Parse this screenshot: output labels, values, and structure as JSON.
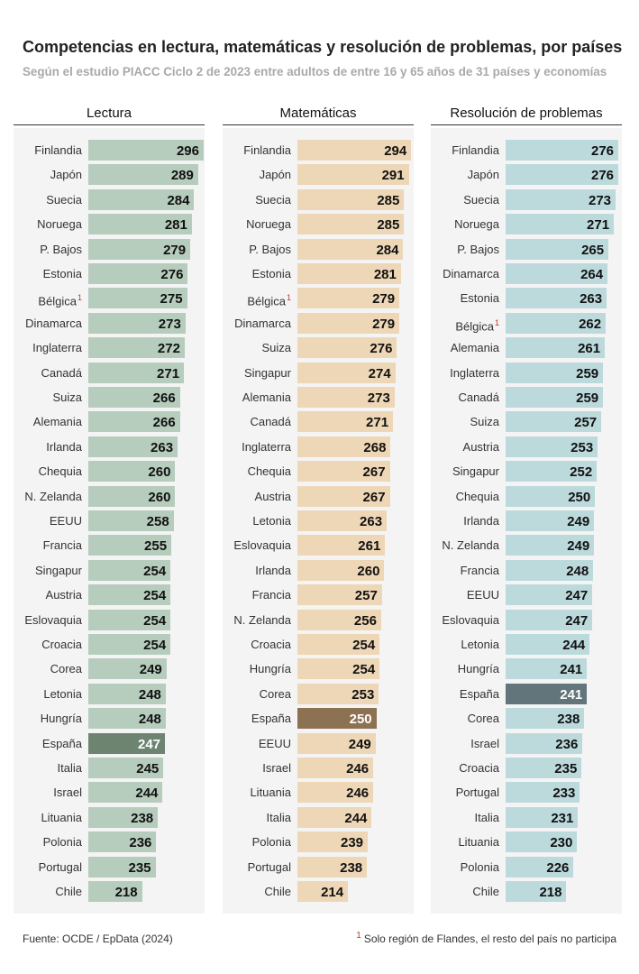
{
  "title": "Competencias en lectura, matemáticas y resolución de problemas, por países",
  "subtitle": "Según el estudio PIACC Ciclo 2 de 2023 entre adultos de entre 16 y 65 años de 31 países y economías",
  "source": "Fuente: OCDE / EpData (2024)",
  "footnote": {
    "marker": "1",
    "text": "Solo región de Flandes, el resto del país no participa"
  },
  "chart_data": [
    {
      "type": "bar",
      "orientation": "horizontal",
      "title": "Lectura",
      "bar_color": "#b6ccbd",
      "highlight_color": "#6d8471",
      "highlight": "España",
      "xlim": [
        150,
        296
      ],
      "footnoted": [
        "Bélgica"
      ],
      "categories": [
        "Finlandia",
        "Japón",
        "Suecia",
        "Noruega",
        "P. Bajos",
        "Estonia",
        "Bélgica",
        "Dinamarca",
        "Inglaterra",
        "Canadá",
        "Suiza",
        "Alemania",
        "Irlanda",
        "Chequia",
        "N. Zelanda",
        "EEUU",
        "Francia",
        "Singapur",
        "Austria",
        "Eslovaquia",
        "Croacia",
        "Corea",
        "Letonia",
        "Hungría",
        "España",
        "Italia",
        "Israel",
        "Lituania",
        "Polonia",
        "Portugal",
        "Chile"
      ],
      "values": [
        296,
        289,
        284,
        281,
        279,
        276,
        275,
        273,
        272,
        271,
        266,
        266,
        263,
        260,
        260,
        258,
        255,
        254,
        254,
        254,
        254,
        249,
        248,
        248,
        247,
        245,
        244,
        238,
        236,
        235,
        218
      ]
    },
    {
      "type": "bar",
      "orientation": "horizontal",
      "title": "Matemáticas",
      "bar_color": "#eed7b6",
      "highlight_color": "#8c7252",
      "highlight": "España",
      "xlim": [
        150,
        296
      ],
      "footnoted": [
        "Bélgica"
      ],
      "categories": [
        "Finlandia",
        "Japón",
        "Suecia",
        "Noruega",
        "P. Bajos",
        "Estonia",
        "Bélgica",
        "Dinamarca",
        "Suiza",
        "Singapur",
        "Alemania",
        "Canadá",
        "Inglaterra",
        "Chequia",
        "Austria",
        "Letonia",
        "Eslovaquia",
        "Irlanda",
        "Francia",
        "N. Zelanda",
        "Croacia",
        "Hungría",
        "Corea",
        "España",
        "EEUU",
        "Israel",
        "Lituania",
        "Italia",
        "Polonia",
        "Portugal",
        "Chile"
      ],
      "values": [
        294,
        291,
        285,
        285,
        284,
        281,
        279,
        279,
        276,
        274,
        273,
        271,
        268,
        267,
        267,
        263,
        261,
        260,
        257,
        256,
        254,
        254,
        253,
        250,
        249,
        246,
        246,
        244,
        239,
        238,
        214
      ]
    },
    {
      "type": "bar",
      "orientation": "horizontal",
      "title": "Resolución de problemas",
      "bar_color": "#bcdadc",
      "highlight_color": "#61757a",
      "highlight": "España",
      "xlim": [
        150,
        279
      ],
      "footnoted": [
        "Bélgica"
      ],
      "categories": [
        "Finlandia",
        "Japón",
        "Suecia",
        "Noruega",
        "P. Bajos",
        "Dinamarca",
        "Estonia",
        "Bélgica",
        "Alemania",
        "Inglaterra",
        "Canadá",
        "Suiza",
        "Austria",
        "Singapur",
        "Chequia",
        "Irlanda",
        "N. Zelanda",
        "Francia",
        "EEUU",
        "Eslovaquia",
        "Letonia",
        "Hungría",
        "España",
        "Corea",
        "Israel",
        "Croacia",
        "Portugal",
        "Italia",
        "Lituania",
        "Polonia",
        "Chile"
      ],
      "values": [
        276,
        276,
        273,
        271,
        265,
        264,
        263,
        262,
        261,
        259,
        259,
        257,
        253,
        252,
        250,
        249,
        249,
        248,
        247,
        247,
        244,
        241,
        241,
        238,
        236,
        235,
        233,
        231,
        230,
        226,
        218
      ]
    }
  ]
}
